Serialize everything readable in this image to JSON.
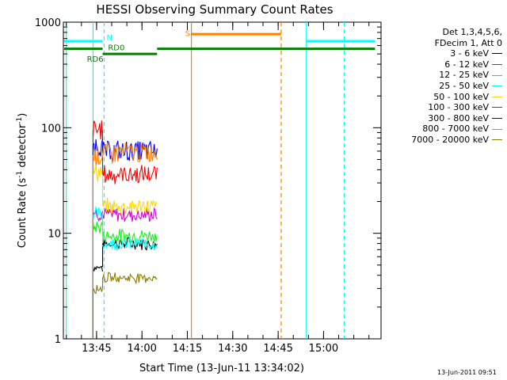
{
  "chart_data": {
    "type": "line",
    "title": "HESSI Observing Summary Count Rates",
    "xlabel": "Start Time (13-Jun-11 13:34:02)",
    "ylabel_main": "Count Rate (s",
    "ylabel_sup1": "-1",
    "ylabel_mid": " detector",
    "ylabel_sup2": "-1",
    "ylabel_end": ")",
    "y_scale": "log",
    "ylim": [
      1,
      1000
    ],
    "xlim": [
      "13:34:02",
      "15:19:00"
    ],
    "xticks": [
      "13:45",
      "14:00",
      "14:15",
      "14:30",
      "14:45",
      "15:00"
    ],
    "yticks": [
      "1",
      "10",
      "100",
      "1000"
    ],
    "legend_header": [
      "Det 1,3,4,5,6,",
      "FDecim 1, Att 0"
    ],
    "series": [
      {
        "name": "3 - 6 keV",
        "color": "#000000",
        "segments": [
          {
            "start": "13:43:50",
            "end": "13:47:00",
            "value": 4.8
          },
          {
            "start": "13:47:00",
            "end": "14:05:00",
            "value": 8.0
          }
        ]
      },
      {
        "name": "6 - 12 keV",
        "color": "#d400d4",
        "segments": [
          {
            "start": "13:43:50",
            "end": "13:47:00",
            "value": 15.5
          },
          {
            "start": "13:47:00",
            "end": "14:05:00",
            "value": 15.0
          }
        ]
      },
      {
        "name": "12 - 25 keV",
        "color": "#00ff00",
        "segments": [
          {
            "start": "13:43:50",
            "end": "13:47:00",
            "value": 11.5
          },
          {
            "start": "13:47:00",
            "end": "14:05:00",
            "value": 9.5
          }
        ]
      },
      {
        "name": "25 - 50 keV",
        "color": "#00ffff",
        "segments": [
          {
            "start": "13:43:50",
            "end": "13:47:00",
            "value": 15.0
          },
          {
            "start": "13:47:00",
            "end": "14:05:00",
            "value": 8.0
          }
        ]
      },
      {
        "name": "50 - 100 keV",
        "color": "#ffd700",
        "segments": [
          {
            "start": "13:43:50",
            "end": "13:47:00",
            "value": 38
          },
          {
            "start": "13:47:00",
            "end": "14:05:00",
            "value": 18
          }
        ]
      },
      {
        "name": "100 - 300 keV",
        "color": "#ff0000",
        "segments": [
          {
            "start": "13:43:50",
            "end": "13:47:00",
            "value": 95
          },
          {
            "start": "13:47:00",
            "end": "14:05:00",
            "value": 36
          }
        ]
      },
      {
        "name": "300 - 800 keV",
        "color": "#0000ff",
        "segments": [
          {
            "start": "13:43:50",
            "end": "13:47:00",
            "value": 68
          },
          {
            "start": "13:47:00",
            "end": "14:05:00",
            "value": 60
          }
        ]
      },
      {
        "name": "800 - 7000 keV",
        "color": "#ff7f00",
        "segments": [
          {
            "start": "13:43:50",
            "end": "13:47:00",
            "value": 55
          },
          {
            "start": "13:47:00",
            "end": "14:05:00",
            "value": 58
          }
        ]
      },
      {
        "name": "7000 - 20000 keV",
        "color": "#8b7d00",
        "segments": [
          {
            "start": "13:43:50",
            "end": "13:47:00",
            "value": 3.0
          },
          {
            "start": "13:47:00",
            "end": "14:05:00",
            "value": 3.8
          }
        ]
      }
    ],
    "vertical_markers": [
      {
        "time": "13:35:00",
        "color": "#00ffff",
        "dash": false
      },
      {
        "time": "13:43:50",
        "color": "#00ffff",
        "dash": false
      },
      {
        "time": "13:47:30",
        "color": "#00ffff",
        "dash": true
      },
      {
        "time": "14:16:20",
        "color": "#ff7f00",
        "dash": false
      },
      {
        "time": "14:46:00",
        "color": "#ff7f00",
        "dash": true
      },
      {
        "time": "14:54:20",
        "color": "#00ffff",
        "dash": false
      },
      {
        "time": "15:06:50",
        "color": "#00ffff",
        "dash": true
      }
    ],
    "flag_bars": [
      {
        "start": "13:34:02",
        "end": "13:47:00",
        "value": 660,
        "color": "#00ffff"
      },
      {
        "start": "14:54:20",
        "end": "15:17:00",
        "value": 660,
        "color": "#00ffff"
      },
      {
        "start": "14:16:20",
        "end": "14:46:00",
        "value": 770,
        "color": "#ff7f00"
      },
      {
        "start": "13:34:02",
        "end": "13:47:00",
        "value": 560,
        "color": "#007f00"
      },
      {
        "start": "14:05:00",
        "end": "15:17:00",
        "value": 560,
        "color": "#007f00"
      },
      {
        "start": "13:47:00",
        "end": "14:05:00",
        "value": 500,
        "color": "#007f00"
      }
    ],
    "flag_labels": [
      {
        "text": "N",
        "time": "13:47:30",
        "value": 720,
        "color": "#00ffff"
      },
      {
        "text": "S",
        "time": "14:13:30",
        "value": 790,
        "color": "#ff7f00"
      },
      {
        "text": "RD0",
        "time": "13:48:00",
        "value": 580,
        "color": "#007f00"
      },
      {
        "text": "RD6",
        "time": "13:41:00",
        "value": 450,
        "color": "#007f00"
      }
    ],
    "timestamp": "13-Jun-2011 09:51"
  }
}
